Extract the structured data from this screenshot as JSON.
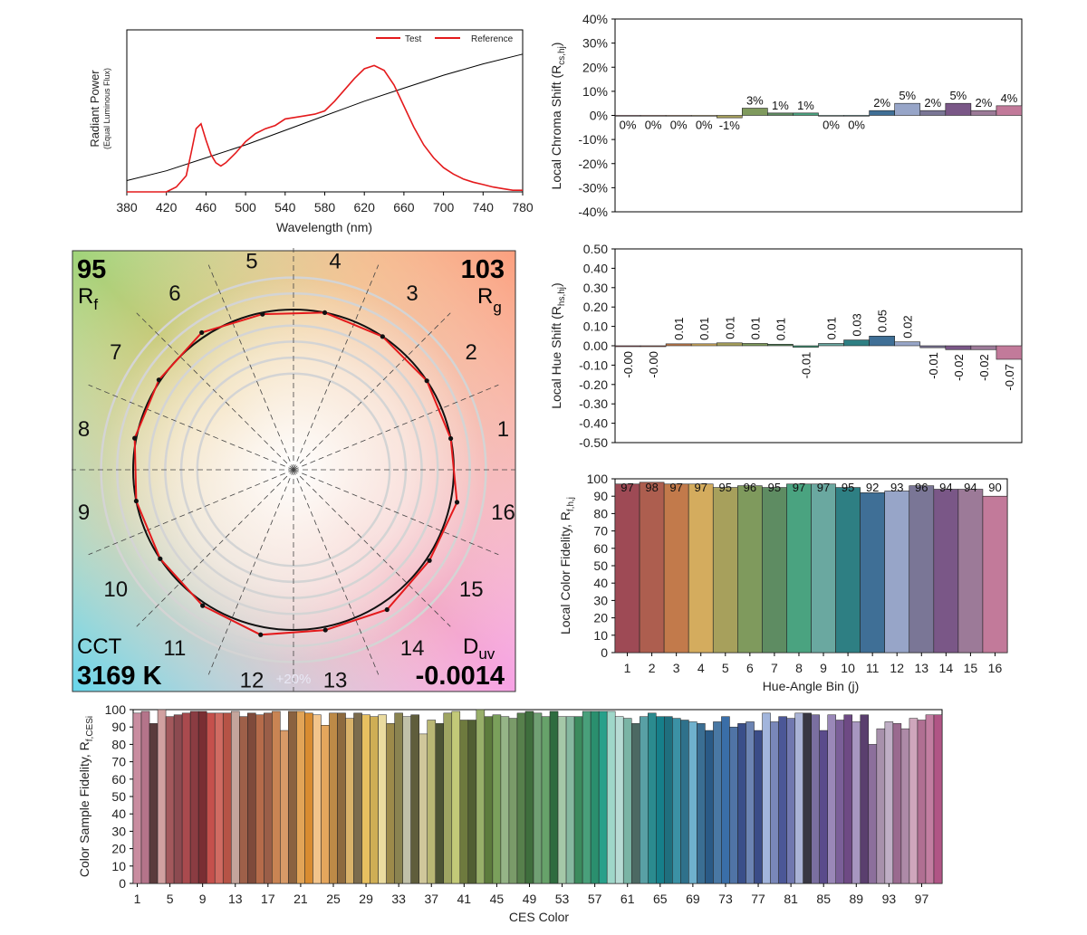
{
  "chart_data": [
    {
      "type": "line",
      "id": "spd",
      "xlabel": "Wavelength (nm)",
      "ylabel": "Radiant Power",
      "ylabel_sub": "(Equal Luminous Flux)",
      "xlim": [
        380,
        780
      ],
      "xticks": [
        380,
        420,
        460,
        500,
        540,
        580,
        620,
        660,
        700,
        740,
        780
      ],
      "legend": "top-right",
      "series": [
        {
          "name": "Test",
          "color": "#e41a1c",
          "x": [
            380,
            400,
            420,
            430,
            440,
            445,
            450,
            455,
            460,
            465,
            470,
            475,
            480,
            490,
            500,
            510,
            520,
            530,
            540,
            550,
            560,
            570,
            580,
            590,
            600,
            610,
            620,
            630,
            640,
            650,
            660,
            670,
            680,
            690,
            700,
            710,
            720,
            730,
            740,
            750,
            760,
            770,
            780
          ],
          "y": [
            0.0,
            0.0,
            0.0,
            0.03,
            0.1,
            0.24,
            0.39,
            0.42,
            0.32,
            0.23,
            0.18,
            0.16,
            0.18,
            0.24,
            0.31,
            0.36,
            0.39,
            0.41,
            0.45,
            0.46,
            0.47,
            0.48,
            0.5,
            0.56,
            0.63,
            0.7,
            0.76,
            0.78,
            0.75,
            0.66,
            0.53,
            0.4,
            0.29,
            0.21,
            0.15,
            0.11,
            0.08,
            0.06,
            0.045,
            0.03,
            0.02,
            0.01,
            0.01
          ]
        },
        {
          "name": "Reference",
          "color": "#000000",
          "x": [
            380,
            420,
            460,
            500,
            540,
            580,
            620,
            660,
            700,
            740,
            780
          ],
          "y": [
            0.07,
            0.13,
            0.21,
            0.29,
            0.38,
            0.47,
            0.56,
            0.64,
            0.72,
            0.79,
            0.85
          ]
        }
      ]
    },
    {
      "type": "bar",
      "id": "chroma",
      "ylabel": "Local Chroma Shift (R",
      "ylabel_sub": "cs,hj",
      "ylabel_end": ")",
      "ylim": [
        -40,
        40
      ],
      "yticks": [
        "40%",
        "30%",
        "20%",
        "10%",
        "0%",
        "-10%",
        "-20%",
        "-30%",
        "-40%"
      ],
      "categories": [
        1,
        2,
        3,
        4,
        5,
        6,
        7,
        8,
        9,
        10,
        11,
        12,
        13,
        14,
        15,
        16
      ],
      "values": [
        0,
        0,
        0,
        0,
        -1,
        3,
        1,
        1,
        0,
        0,
        2,
        5,
        2,
        5,
        2,
        4
      ],
      "labels": [
        "0%",
        "0%",
        "0%",
        "0%",
        "-1%",
        "3%",
        "1%",
        "1%",
        "0%",
        "0%",
        "2%",
        "5%",
        "2%",
        "5%",
        "2%",
        "4%"
      ]
    },
    {
      "type": "bar",
      "id": "hue",
      "ylabel": "Local Hue Shift (R",
      "ylabel_sub": "hs,hj",
      "ylabel_end": ")",
      "ylim": [
        -0.5,
        0.5
      ],
      "yticks": [
        "0.50",
        "0.40",
        "0.30",
        "0.20",
        "0.10",
        "0.00",
        "-0.10",
        "-0.20",
        "-0.30",
        "-0.40",
        "-0.50"
      ],
      "categories": [
        1,
        2,
        3,
        4,
        5,
        6,
        7,
        8,
        9,
        10,
        11,
        12,
        13,
        14,
        15,
        16
      ],
      "values": [
        -0.003,
        -0.002,
        0.01,
        0.01,
        0.015,
        0.012,
        0.008,
        -0.008,
        0.012,
        0.03,
        0.05,
        0.02,
        -0.01,
        -0.02,
        -0.02,
        -0.07
      ],
      "labels": [
        "-0.00",
        "-0.00",
        "0.01",
        "0.01",
        "0.01",
        "0.01",
        "0.01",
        "-0.01",
        "0.01",
        "0.03",
        "0.05",
        "0.02",
        "-0.01",
        "-0.02",
        "-0.02",
        "-0.07"
      ]
    },
    {
      "type": "bar",
      "id": "fidelity",
      "xlabel": "Hue-Angle Bin (j)",
      "ylabel": "Local Color Fidelity, R",
      "ylabel_sub": "f,h,j",
      "ylim": [
        0,
        100
      ],
      "yticks": [
        0,
        10,
        20,
        30,
        40,
        50,
        60,
        70,
        80,
        90,
        100
      ],
      "categories": [
        "1",
        "2",
        "3",
        "4",
        "5",
        "6",
        "7",
        "8",
        "9",
        "10",
        "11",
        "12",
        "13",
        "14",
        "15",
        "16"
      ],
      "values": [
        97,
        98,
        97,
        97,
        95,
        96,
        95,
        97,
        97,
        95,
        92,
        93,
        96,
        94,
        94,
        90
      ]
    },
    {
      "type": "bar",
      "id": "ces",
      "xlabel": "CES Color",
      "ylabel": "Color Sample Fidelity, R",
      "ylabel_sub": "f,CESi",
      "ylim": [
        0,
        100
      ],
      "yticks": [
        0,
        10,
        20,
        30,
        40,
        50,
        60,
        70,
        80,
        90,
        100
      ],
      "xticks": [
        "1",
        "5",
        "9",
        "13",
        "17",
        "21",
        "25",
        "29",
        "33",
        "37",
        "41",
        "45",
        "49",
        "53",
        "57",
        "61",
        "65",
        "69",
        "73",
        "77",
        "81",
        "85",
        "89",
        "93",
        "97"
      ],
      "values": [
        98,
        99,
        92,
        100,
        96,
        97,
        98,
        99,
        99,
        98,
        98,
        98,
        99,
        96,
        98,
        97,
        98,
        99,
        88,
        99,
        99,
        98,
        97,
        91,
        98,
        98,
        95,
        98,
        97,
        96,
        97,
        92,
        98,
        96,
        97,
        86,
        94,
        92,
        98,
        99,
        94,
        94,
        100,
        96,
        97,
        96,
        95,
        98,
        99,
        98,
        96,
        99,
        96,
        96,
        96,
        99,
        99,
        99,
        99,
        96,
        95,
        92,
        96,
        98,
        96,
        96,
        95,
        94,
        93,
        92,
        88,
        93,
        96,
        90,
        92,
        93,
        88,
        98,
        93,
        96,
        95,
        98,
        98,
        97,
        88,
        97,
        94,
        97,
        93,
        97,
        80,
        89,
        93,
        92,
        89,
        95,
        94,
        97,
        97
      ],
      "colors": [
        "#c98da0",
        "#b4748a",
        "#5a3b3c",
        "#d1a0a0",
        "#a3585c",
        "#8c4a50",
        "#a94a4e",
        "#8a3c42",
        "#7a2e33",
        "#c5504c",
        "#d06b62",
        "#b65346",
        "#c4a59c",
        "#9e6049",
        "#7e4a3b",
        "#b56b4a",
        "#9a5e48",
        "#c98453",
        "#d79a67",
        "#8a6240",
        "#e2a457",
        "#d98c31",
        "#f2c48b",
        "#e4a65d",
        "#bd8a47",
        "#8d6a3f",
        "#d9b26a",
        "#7b6b4d",
        "#e7c060",
        "#cfae55",
        "#eadb9f",
        "#9c8a4a",
        "#8a8350",
        "#c0c0a8",
        "#5f5d3c",
        "#d0c79b",
        "#b9b774",
        "#4d5434",
        "#9fa562",
        "#c3c978",
        "#6e7a3e",
        "#515f33",
        "#98af6a",
        "#5d7b3d",
        "#7aa05b",
        "#95b487",
        "#7a9b69",
        "#57804c",
        "#3f6e3d",
        "#70a074",
        "#67a26a",
        "#2e6c3f",
        "#a5c8a8",
        "#86b8a0",
        "#3c8b5e",
        "#49a07b",
        "#2a8f6e",
        "#27a08a",
        "#9fd7c9",
        "#b7dbd4",
        "#7ab4a5",
        "#4c6963",
        "#59a0a5",
        "#2b8b8f",
        "#167f8a",
        "#1f6f7e",
        "#3b91a5",
        "#2f718b",
        "#6fb1cd",
        "#3a6e93",
        "#2a5a86",
        "#4978a4",
        "#3a6ea8",
        "#5074a6",
        "#3a4f8a",
        "#6c84b3",
        "#3b4d88",
        "#a2b5dc",
        "#7987b9",
        "#4b5797",
        "#7178b0",
        "#aab3d6",
        "#383742",
        "#7a6fa0",
        "#5a4b8b",
        "#9a88b8",
        "#7a5f98",
        "#6e4a84",
        "#a796c0",
        "#5a3f6e",
        "#8c6f9c",
        "#a891ac",
        "#bfaec5",
        "#9a6a8f",
        "#ad8aa7",
        "#cfa6bc",
        "#b06f92",
        "#c27ea1",
        "#b05585"
      ]
    }
  ],
  "vector_graphic": {
    "rf_value": "95",
    "rf_label": "R",
    "rf_sub": "f",
    "rg_value": "103",
    "rg_label": "R",
    "rg_sub": "g",
    "cct_label": "CCT",
    "cct_value": "3169 K",
    "duv_label": "D",
    "duv_sub": "uv",
    "duv_value": "-0.0014",
    "scale_label": "+20%",
    "bins": [
      "1",
      "2",
      "3",
      "4",
      "5",
      "6",
      "7",
      "8",
      "9",
      "10",
      "11",
      "12",
      "13",
      "14",
      "15",
      "16"
    ],
    "reference_radius_rel": 1.0,
    "test_shift_rel": [
      0.0,
      0.0,
      0.0,
      0.0,
      -0.01,
      0.03,
      0.01,
      0.01,
      0.0,
      0.0,
      0.02,
      0.05,
      0.02,
      0.05,
      0.02,
      0.04
    ]
  }
}
